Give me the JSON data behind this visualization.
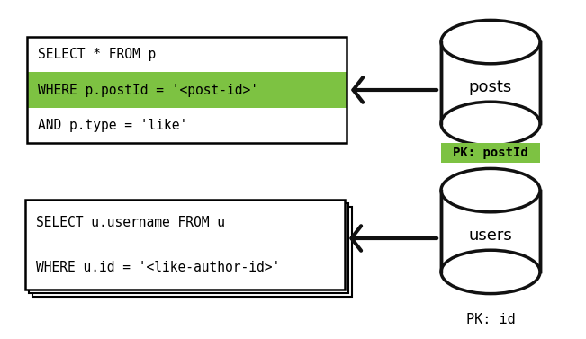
{
  "bg_color": "#ffffff",
  "green_color": "#7dc242",
  "arrow_color": "#111111",
  "cylinder_color": "#ffffff",
  "cylinder_border": "#111111",
  "sql1_line1": "SELECT * FROM p",
  "sql1_line2": "WHERE p.postId = '<post-id>'",
  "sql1_line3": "AND p.type = 'like'",
  "db1_label": "posts",
  "pk1_label": "PK: postId",
  "sql2_line1": "SELECT u.username FROM u",
  "sql2_line2": "WHERE u.id = '<like-author-id>'",
  "db2_label": "users",
  "pk2_label": "PK: id",
  "font_size": 10.5,
  "font_family": "monospace"
}
